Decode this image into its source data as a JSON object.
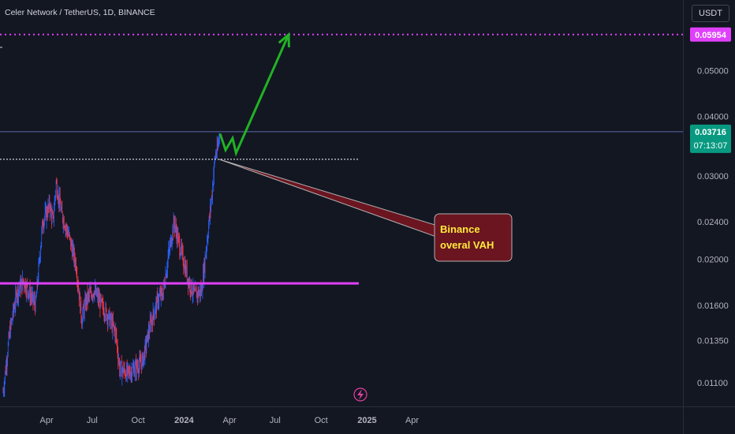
{
  "header": {
    "title": "Celer Network / TetherUS, 1D, BINANCE",
    "currency": "USDT"
  },
  "chart_data": {
    "type": "candlestick",
    "y_scale": "log",
    "ylim": [
      0.0098,
      0.0704
    ],
    "y_ticks": [
      "0.01100",
      "0.01350",
      "0.01600",
      "0.02000",
      "0.02400",
      "0.03000",
      "0.04000",
      "0.05000"
    ],
    "x_ticks": [
      "Apr",
      "Jul",
      "Oct",
      "2024",
      "Apr",
      "Jul",
      "Oct",
      "2025",
      "Apr"
    ],
    "last_price": "0.03716",
    "countdown": "07:13:07",
    "target_price": "0.05954",
    "vah_level": 0.0325,
    "support_level": 0.0178,
    "annotation": {
      "line1": "Binance",
      "line2": "overal VAH"
    },
    "price_path": [
      {
        "date": "2023-01-04",
        "price": 0.0105
      },
      {
        "date": "2023-01-17",
        "price": 0.014
      },
      {
        "date": "2023-01-31",
        "price": 0.017
      },
      {
        "date": "2023-02-14",
        "price": 0.018
      },
      {
        "date": "2023-02-28",
        "price": 0.0168
      },
      {
        "date": "2023-03-10",
        "price": 0.016
      },
      {
        "date": "2023-03-24",
        "price": 0.024
      },
      {
        "date": "2023-04-07",
        "price": 0.026
      },
      {
        "date": "2023-04-14",
        "price": 0.024
      },
      {
        "date": "2023-04-20",
        "price": 0.029
      },
      {
        "date": "2023-05-01",
        "price": 0.025
      },
      {
        "date": "2023-05-15",
        "price": 0.0225
      },
      {
        "date": "2023-05-30",
        "price": 0.0195
      },
      {
        "date": "2023-06-10",
        "price": 0.015
      },
      {
        "date": "2023-06-20",
        "price": 0.0165
      },
      {
        "date": "2023-07-05",
        "price": 0.0172
      },
      {
        "date": "2023-07-20",
        "price": 0.016
      },
      {
        "date": "2023-08-05",
        "price": 0.015
      },
      {
        "date": "2023-08-17",
        "price": 0.014
      },
      {
        "date": "2023-08-25",
        "price": 0.0118
      },
      {
        "date": "2023-09-10",
        "price": 0.0115
      },
      {
        "date": "2023-09-25",
        "price": 0.0118
      },
      {
        "date": "2023-10-10",
        "price": 0.0122
      },
      {
        "date": "2023-10-25",
        "price": 0.0145
      },
      {
        "date": "2023-11-10",
        "price": 0.0165
      },
      {
        "date": "2023-11-20",
        "price": 0.017
      },
      {
        "date": "2023-12-01",
        "price": 0.0205
      },
      {
        "date": "2023-12-12",
        "price": 0.024
      },
      {
        "date": "2023-12-20",
        "price": 0.022
      },
      {
        "date": "2023-12-30",
        "price": 0.02
      },
      {
        "date": "2024-01-10",
        "price": 0.018
      },
      {
        "date": "2024-01-22",
        "price": 0.0168
      },
      {
        "date": "2024-02-05",
        "price": 0.0172
      },
      {
        "date": "2024-02-15",
        "price": 0.0215
      },
      {
        "date": "2024-02-25",
        "price": 0.027
      },
      {
        "date": "2024-03-03",
        "price": 0.033
      },
      {
        "date": "2024-03-08",
        "price": 0.034
      },
      {
        "date": "2024-03-12",
        "price": 0.0372
      }
    ],
    "projection_path": [
      {
        "date": "2024-03-13",
        "price": 0.0368
      },
      {
        "date": "2024-03-24",
        "price": 0.034
      },
      {
        "date": "2024-04-07",
        "price": 0.036
      },
      {
        "date": "2024-04-14",
        "price": 0.0335
      },
      {
        "date": "2024-07-28",
        "price": 0.0595
      }
    ]
  },
  "colors": {
    "background": "#131722",
    "axis_text": "#b2b5be",
    "up": "#2962ff",
    "down": "#f23645",
    "magenta": "#e040fb",
    "green": "#21b324",
    "last_price_bg": "#089981",
    "callout_bg": "#6b1520",
    "callout_text": "#ffeb3b"
  }
}
